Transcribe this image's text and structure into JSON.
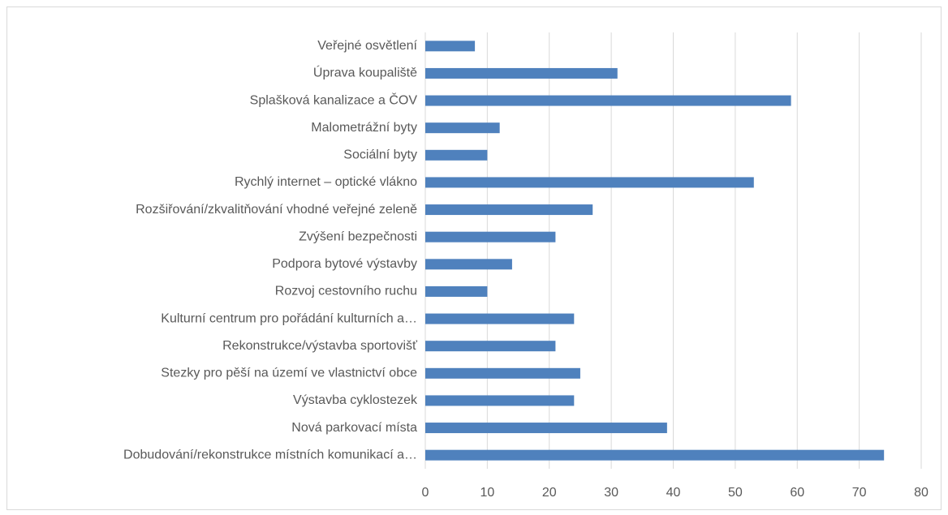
{
  "chart_data": {
    "type": "barh",
    "categories": [
      "Veřejné osvětlení",
      "Úprava koupaliště",
      "Splašková kanalizace a ČOV",
      "Malometrážní byty",
      "Sociální byty",
      "Rychlý internet – optické vlákno",
      "Rozšiřování/zkvalitňování vhodné veřejné zeleně",
      "Zvýšení bezpečnosti",
      "Podpora bytové výstavby",
      "Rozvoj cestovního ruchu",
      "Kulturní centrum pro pořádání kulturních a…",
      "Rekonstrukce/výstavba sportovišť",
      "Stezky pro pěší na území ve vlastnictví obce",
      "Výstavba cyklostezek",
      "Nová parkovací místa",
      "Dobudování/rekonstrukce místních komunikací a…"
    ],
    "values": [
      8,
      31,
      59,
      12,
      10,
      53,
      27,
      21,
      14,
      10,
      24,
      21,
      25,
      24,
      39,
      74
    ],
    "color": "#4f81bd",
    "xlim": [
      0,
      80
    ],
    "xticks": [
      0,
      10,
      20,
      30,
      40,
      50,
      60,
      70,
      80
    ],
    "grid": true
  }
}
